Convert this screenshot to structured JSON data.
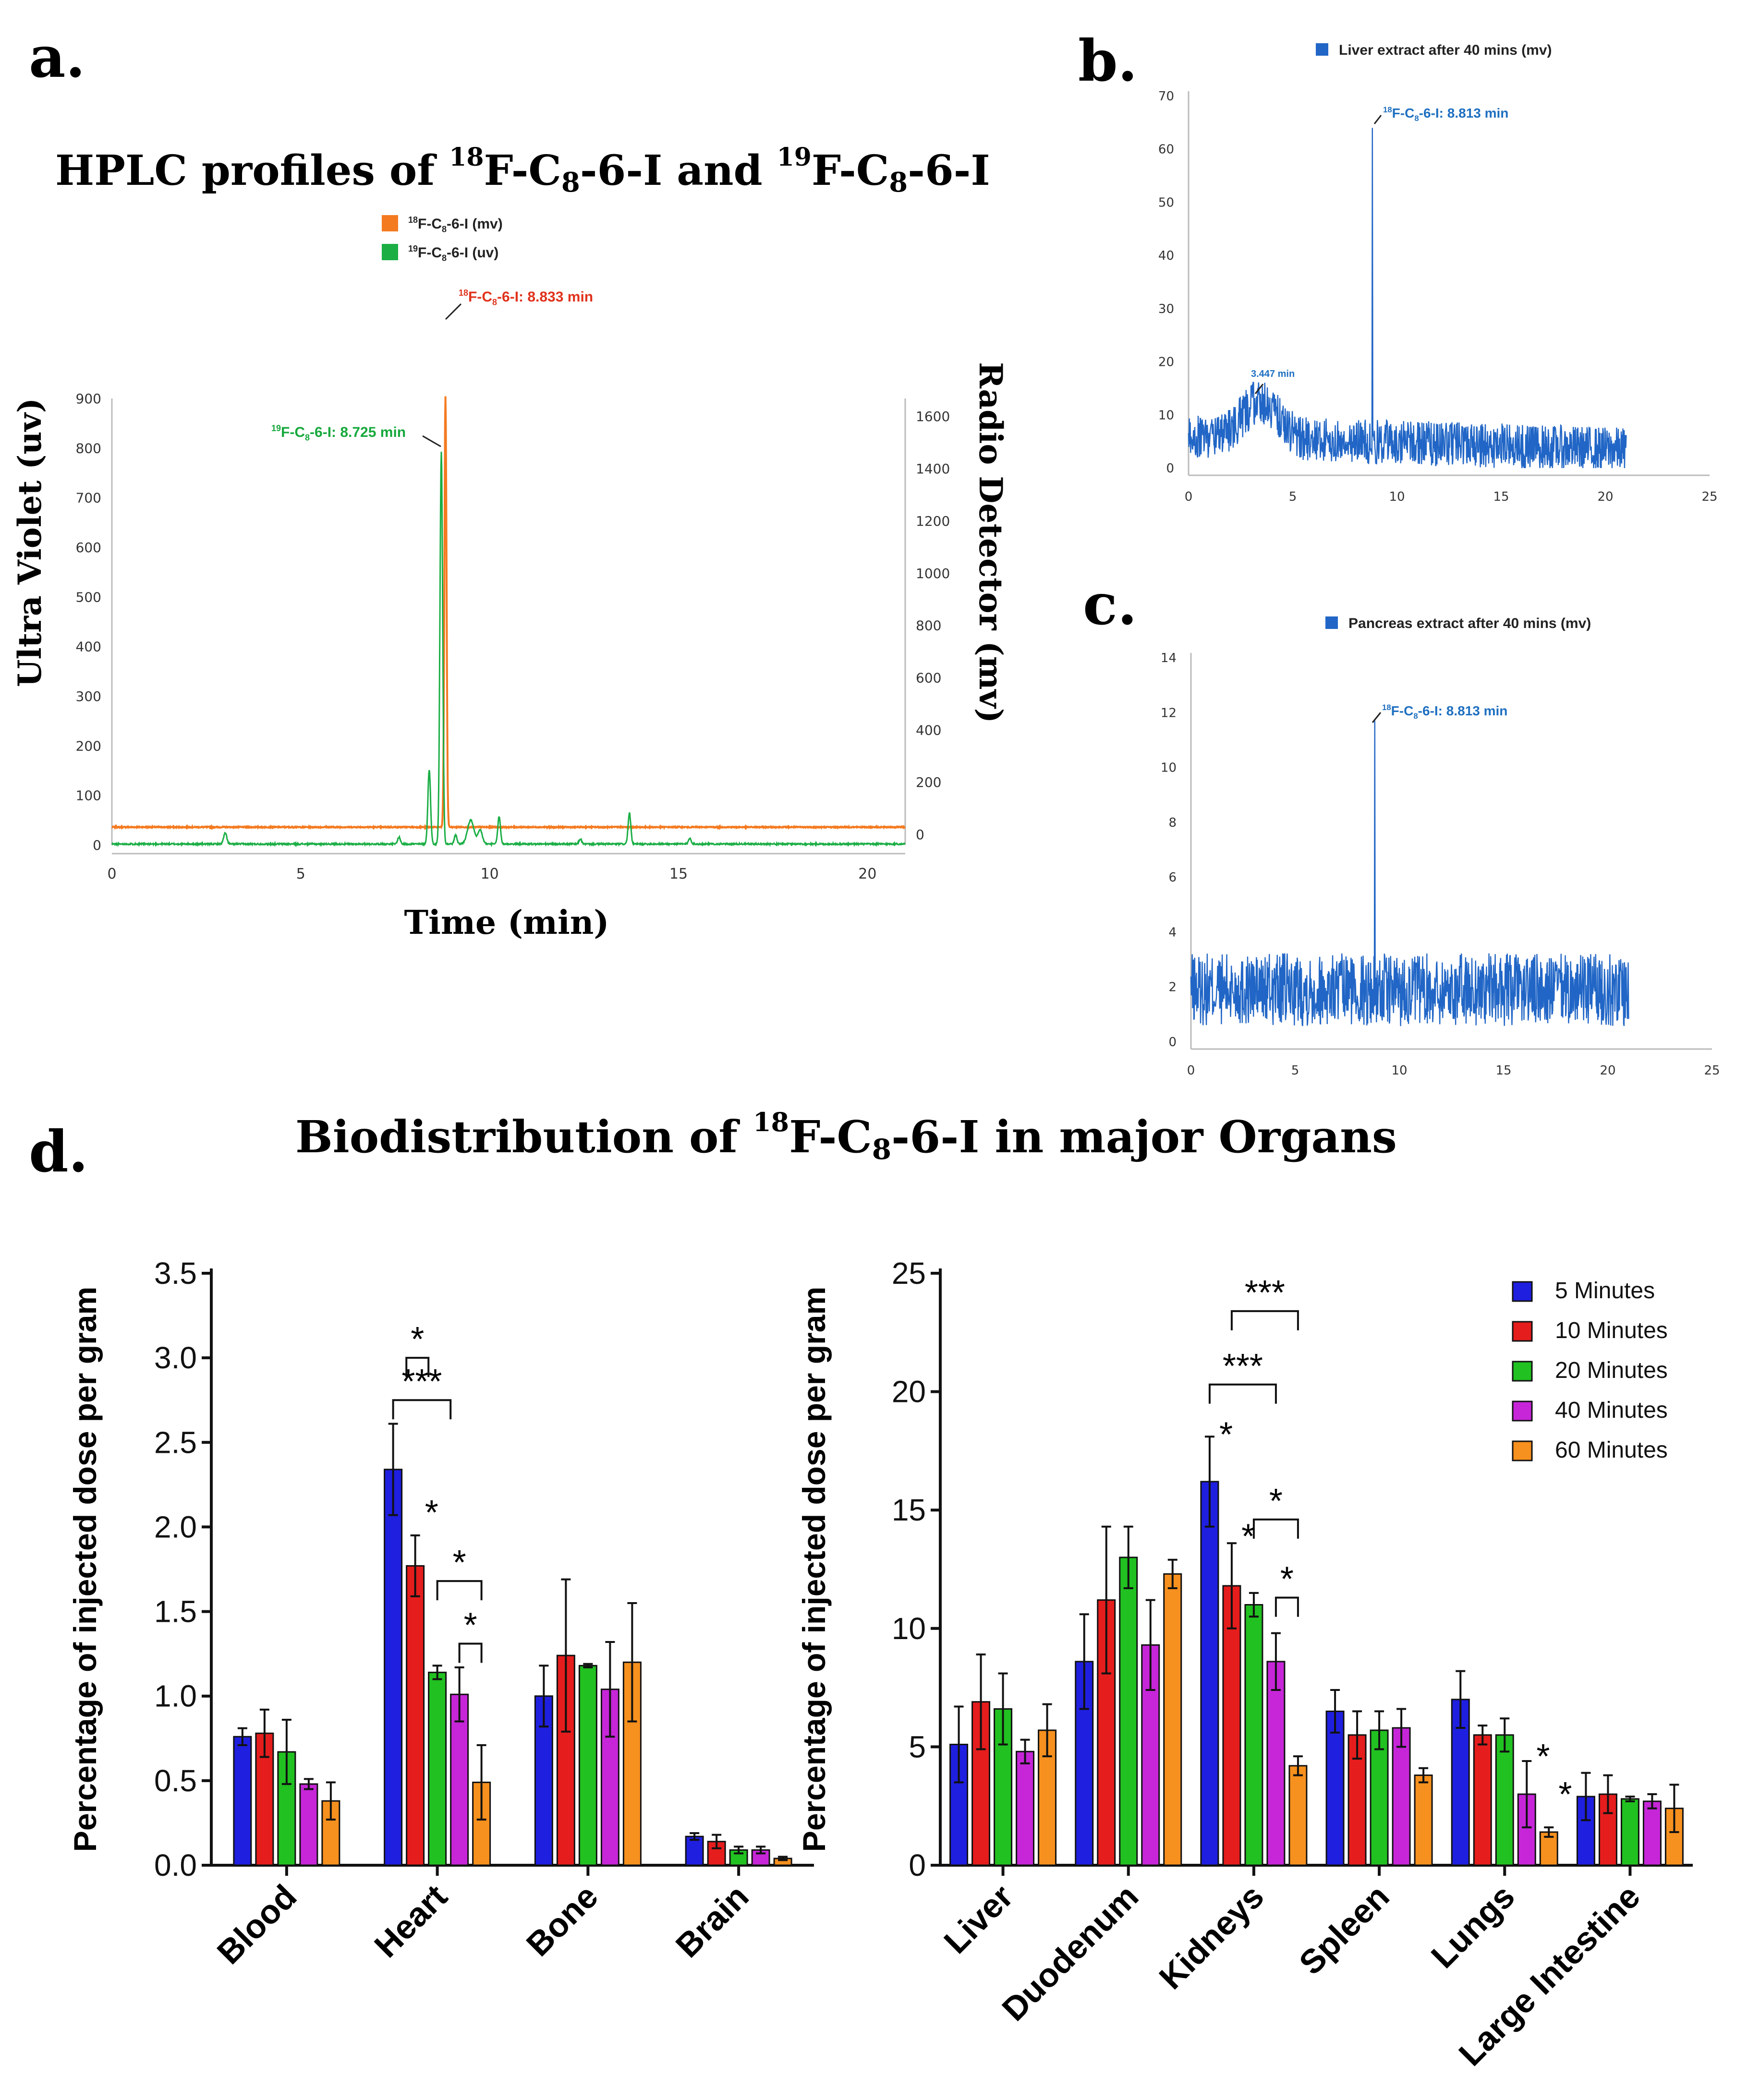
{
  "panel_labels": {
    "a": "a.",
    "b": "b.",
    "c": "c.",
    "d": "d."
  },
  "colors": {
    "orange": "#f47a20",
    "green": "#1bae45",
    "blue_trace": "#2166c6",
    "red_text": "#e0321c",
    "green_text": "#16a83c",
    "blue_text": "#1e6fc0"
  },
  "chart_data": [
    {
      "id": "a",
      "type": "line",
      "title": {
        "prefix": "HPLC profiles of ",
        "iso1": "18",
        "mid": "F-C",
        "sub1": "8",
        "tail1": "-6-I and ",
        "iso2": "19",
        "mid2": "F-C",
        "sub2": "8",
        "tail2": "-6-I"
      },
      "xlabel": "Time (min)",
      "ylabel_left": "Ultra Violet (uv)",
      "ylabel_right": "Radio Detector (mv)",
      "xlim": [
        0,
        21
      ],
      "ylim_left": [
        0,
        900
      ],
      "ylim_right": [
        0,
        1650
      ],
      "xticks": [
        "0",
        "5",
        "10",
        "15",
        "20"
      ],
      "yticks_left": [
        "0",
        "100",
        "200",
        "300",
        "400",
        "500",
        "600",
        "700",
        "800",
        "900"
      ],
      "yticks_right": [
        "0",
        "200",
        "400",
        "600",
        "800",
        "1000",
        "1200",
        "1400",
        "1600"
      ],
      "legend": [
        {
          "iso": "18",
          "text": "F-C",
          "sub": "8",
          "tail": "-6-I (mv)",
          "color": "#f47a20"
        },
        {
          "iso": "19",
          "text": "F-C",
          "sub": "8",
          "tail": "-6-I (uv)",
          "color": "#1bae45"
        }
      ],
      "annotations": [
        {
          "iso": "18",
          "text": "F-C",
          "sub": "8",
          "tail": "-6-I: 8.833 min",
          "color": "#e0321c"
        },
        {
          "iso": "19",
          "text": "F-C",
          "sub": "8",
          "tail": "-6-I: 8.725 min",
          "color": "#16a83c"
        }
      ],
      "series": [
        {
          "name": "18F-C8-6-I (mv)",
          "axis": "right",
          "baseline": 28,
          "peaks": [
            {
              "x": 8.83,
              "y": 1650,
              "w": 0.04
            }
          ]
        },
        {
          "name": "19F-C8-6-I (uv)",
          "axis": "left",
          "baseline": 2,
          "peaks": [
            {
              "x": 3.0,
              "y": 22,
              "w": 0.06
            },
            {
              "x": 7.6,
              "y": 14,
              "w": 0.05
            },
            {
              "x": 8.4,
              "y": 150,
              "w": 0.05
            },
            {
              "x": 8.72,
              "y": 790,
              "w": 0.05
            },
            {
              "x": 9.1,
              "y": 18,
              "w": 0.05
            },
            {
              "x": 9.5,
              "y": 48,
              "w": 0.12
            },
            {
              "x": 9.75,
              "y": 28,
              "w": 0.08
            },
            {
              "x": 10.25,
              "y": 55,
              "w": 0.05
            },
            {
              "x": 12.4,
              "y": 10,
              "w": 0.05
            },
            {
              "x": 13.7,
              "y": 62,
              "w": 0.05
            },
            {
              "x": 15.3,
              "y": 12,
              "w": 0.05
            }
          ]
        }
      ]
    },
    {
      "id": "b",
      "type": "line",
      "legend": [
        {
          "text": "Liver extract after 40 mins (mv)",
          "color": "#2166c6"
        }
      ],
      "xlim": [
        0,
        25
      ],
      "ylim": [
        0,
        70
      ],
      "xticks": [
        "0",
        "5",
        "10",
        "15",
        "20",
        "25"
      ],
      "yticks": [
        "0",
        "10",
        "20",
        "30",
        "40",
        "50",
        "60",
        "70"
      ],
      "annotations": [
        {
          "iso": "18",
          "text": "F-C",
          "sub": "8",
          "tail": "-6-I: 8.813 min"
        },
        {
          "text": "3.447 min"
        }
      ],
      "series": [
        {
          "name": "Liver extract after 40 mins (mv)",
          "x_end": 21,
          "noise_base": 6,
          "hump": {
            "x": 3.45,
            "height": 7,
            "width": 1.2
          },
          "peaks": [
            {
              "x": 8.813,
              "y": 64
            }
          ]
        }
      ]
    },
    {
      "id": "c",
      "type": "line",
      "legend": [
        {
          "text": "Pancreas extract after 40 mins (mv)",
          "color": "#2166c6"
        }
      ],
      "xlim": [
        0,
        25
      ],
      "ylim": [
        0,
        14
      ],
      "xticks": [
        "0",
        "5",
        "10",
        "15",
        "20",
        "25"
      ],
      "yticks": [
        "0",
        "2",
        "4",
        "6",
        "8",
        "10",
        "12",
        "14"
      ],
      "annotations": [
        {
          "iso": "18",
          "text": "F-C",
          "sub": "8",
          "tail": "-6-I: 8.813 min"
        }
      ],
      "series": [
        {
          "name": "Pancreas extract after 40 mins (mv)",
          "x_end": 21,
          "noise_base": 1.9,
          "peaks": [
            {
              "x": 8.813,
              "y": 11.7
            }
          ]
        }
      ]
    },
    {
      "id": "d",
      "type": "bar",
      "title": {
        "prefix": "Biodistribution of ",
        "iso": "18",
        "text": "F-C",
        "sub": "8",
        "tail": "-6-I in major Organs"
      },
      "ylabel": "Percentage of injected dose per gram",
      "legend": [
        {
          "name": "5 Minutes",
          "color": "#1f1fe0"
        },
        {
          "name": "10 Minutes",
          "color": "#e51d1d"
        },
        {
          "name": "20 Minutes",
          "color": "#21c121"
        },
        {
          "name": "40 Minutes",
          "color": "#c626d8"
        },
        {
          "name": "60 Minutes",
          "color": "#f6901e"
        }
      ],
      "left": {
        "ylim": [
          0,
          3.5
        ],
        "yticks": [
          "0.0",
          "0.5",
          "1.0",
          "1.5",
          "2.0",
          "2.5",
          "3.0",
          "3.5"
        ],
        "categories": [
          "Blood",
          "Heart",
          "Bone",
          "Brain"
        ],
        "values": [
          [
            0.76,
            0.78,
            0.67,
            0.48,
            0.38
          ],
          [
            2.34,
            1.77,
            1.14,
            1.01,
            0.49
          ],
          [
            1.0,
            1.24,
            1.18,
            1.04,
            1.2
          ],
          [
            0.17,
            0.14,
            0.09,
            0.09,
            0.04
          ]
        ],
        "errors": [
          [
            0.05,
            0.14,
            0.19,
            0.03,
            0.11
          ],
          [
            0.27,
            0.18,
            0.04,
            0.16,
            0.22
          ],
          [
            0.18,
            0.45,
            0.01,
            0.28,
            0.35
          ],
          [
            0.02,
            0.04,
            0.02,
            0.02,
            0.01
          ]
        ],
        "significance": [
          {
            "label": "*",
            "kind": "bracket",
            "cat": 1,
            "from": 0.6,
            "to": 1.6,
            "y": 3.0
          },
          {
            "label": "***",
            "kind": "bracket",
            "cat": 1,
            "from": 0,
            "to": 2.6,
            "y": 2.75
          },
          {
            "label": "*",
            "kind": "bracket",
            "cat": 1,
            "from": 2,
            "to": 4,
            "y": 1.68
          },
          {
            "label": "*",
            "kind": "bracket",
            "cat": 1,
            "from": 3,
            "to": 4,
            "y": 1.31
          },
          {
            "label": "*",
            "kind": "star",
            "cat": 1,
            "bar": 1,
            "y": 2.1
          }
        ]
      },
      "right": {
        "ylim": [
          0,
          25
        ],
        "yticks": [
          "0",
          "5",
          "10",
          "15",
          "20",
          "25"
        ],
        "categories": [
          "Liver",
          "Duodenum",
          "Kidneys",
          "Spleen",
          "Lungs",
          "Large Intestine"
        ],
        "values": [
          [
            5.1,
            6.9,
            6.6,
            4.8,
            5.7
          ],
          [
            8.6,
            11.2,
            13.0,
            9.3,
            12.3
          ],
          [
            16.2,
            11.8,
            11.0,
            8.6,
            4.2
          ],
          [
            6.5,
            5.5,
            5.7,
            5.8,
            3.8
          ],
          [
            7.0,
            5.5,
            5.5,
            3.0,
            1.4
          ],
          [
            2.9,
            3.0,
            2.8,
            2.7,
            2.4
          ]
        ],
        "errors": [
          [
            1.6,
            2.0,
            1.5,
            0.5,
            1.1
          ],
          [
            2.0,
            3.1,
            1.3,
            1.9,
            0.6
          ],
          [
            1.9,
            1.8,
            0.5,
            1.2,
            0.4
          ],
          [
            0.9,
            1.0,
            0.8,
            0.8,
            0.3
          ],
          [
            1.2,
            0.4,
            0.7,
            1.4,
            0.2
          ],
          [
            1.0,
            0.8,
            0.1,
            0.3,
            1.0
          ]
        ],
        "significance": [
          {
            "label": "***",
            "kind": "bracket",
            "cat": 2,
            "from": 1,
            "to": 4,
            "y": 23.4
          },
          {
            "label": "***",
            "kind": "bracket",
            "cat": 2,
            "from": 0,
            "to": 3,
            "y": 20.3
          },
          {
            "label": "*",
            "kind": "bracket",
            "cat": 2,
            "from": 2,
            "to": 4,
            "y": 14.6
          },
          {
            "label": "*",
            "kind": "bracket",
            "cat": 2,
            "from": 3,
            "to": 4,
            "y": 11.3
          },
          {
            "label": "*",
            "kind": "star",
            "cat": 2,
            "bar": 0,
            "y": 18.3
          },
          {
            "label": "*",
            "kind": "star",
            "cat": 2,
            "bar": 1,
            "y": 14.0
          },
          {
            "label": "*",
            "kind": "star",
            "cat": 4,
            "bar": 3,
            "y": 4.7
          },
          {
            "label": "*",
            "kind": "star",
            "cat": 4,
            "bar": 4,
            "y": 3.1
          }
        ]
      }
    }
  ]
}
